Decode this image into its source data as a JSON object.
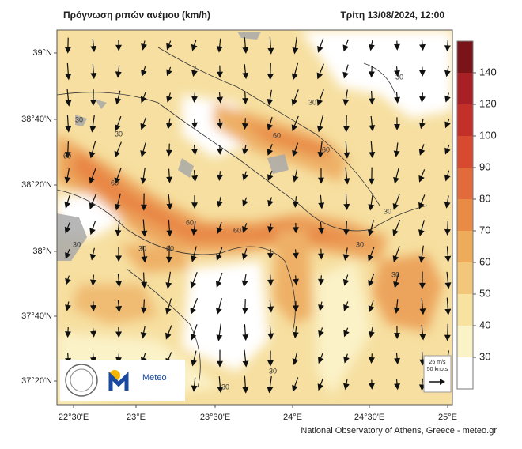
{
  "header": {
    "title": "Πρόγνωση ριπών ανέμου (km/h)",
    "date": "Τρίτη 13/08/2024, 12:00"
  },
  "map": {
    "lat_labels": [
      "39°N",
      "38°40'N",
      "38°20'N",
      "38°N",
      "37°40'N",
      "37°20'N"
    ],
    "lon_labels": [
      "22°30'E",
      "23°E",
      "23°30'E",
      "24°E",
      "24°30'E",
      "25°E"
    ],
    "contour_labels": [
      "30",
      "30",
      "60",
      "60",
      "60",
      "60",
      "60",
      "60",
      "30",
      "30",
      "30",
      "60",
      "30",
      "30",
      "30",
      "30",
      "30",
      "30"
    ],
    "reference_vector": {
      "speed": "26 m/s",
      "knots": "50 knots"
    },
    "logo": "Meteo"
  },
  "colorbar": {
    "labels": [
      "30",
      "40",
      "50",
      "60",
      "70",
      "80",
      "90",
      "100",
      "120",
      "140"
    ]
  },
  "credit": "National Observatory of Athens, Greece - meteo.gr"
}
